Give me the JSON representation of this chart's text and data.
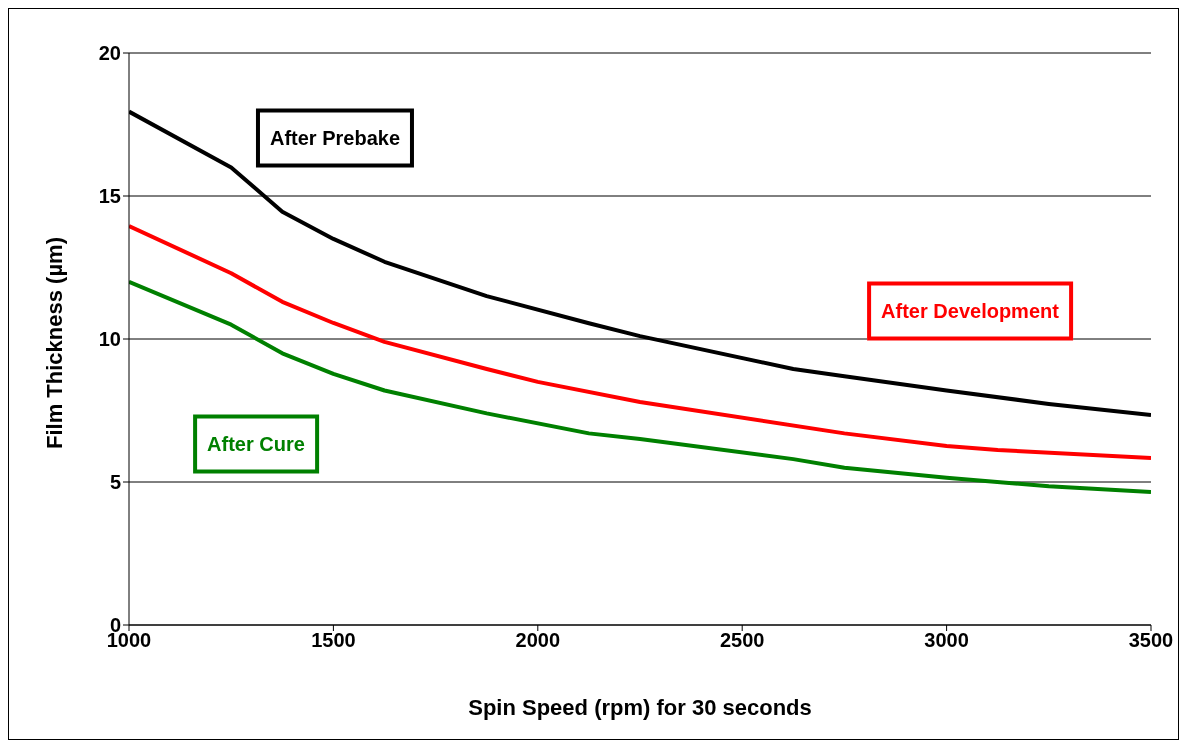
{
  "chart_data": {
    "type": "line",
    "xlabel": "Spin Speed (rpm) for 30 seconds",
    "ylabel": "Film Thickness (µm)",
    "xlim": [
      1000,
      3500
    ],
    "xticks": [
      1000,
      1500,
      2000,
      2500,
      3000,
      3500
    ],
    "ylim": [
      0,
      20
    ],
    "yticks": [
      0,
      5,
      10,
      15,
      20
    ],
    "grid": "y",
    "legend": false,
    "marker": "none",
    "line_style": "solid",
    "series": [
      {
        "name": "After Prebake",
        "color": "#000000",
        "x": [
          1000,
          1250,
          1375,
          1500,
          1625,
          1875,
          2125,
          2250,
          2625,
          2750,
          3000,
          3250,
          3500
        ],
        "values": [
          17.95,
          16.0,
          14.45,
          13.5,
          12.7,
          11.5,
          10.55,
          10.1,
          8.95,
          8.7,
          8.2,
          7.73,
          7.34
        ]
      },
      {
        "name": "After Development",
        "color": "#ff0000",
        "x": [
          1000,
          1250,
          1375,
          1500,
          1625,
          1875,
          2000,
          2250,
          2750,
          3000,
          3125,
          3500
        ],
        "values": [
          13.95,
          12.3,
          11.3,
          10.56,
          9.9,
          8.95,
          8.5,
          7.8,
          6.7,
          6.26,
          6.12,
          5.84
        ]
      },
      {
        "name": "After Cure",
        "color": "#008000",
        "x": [
          1000,
          1250,
          1375,
          1500,
          1625,
          1875,
          2125,
          2250,
          2625,
          2750,
          3000,
          3250,
          3500
        ],
        "values": [
          12.0,
          10.5,
          9.5,
          8.78,
          8.2,
          7.4,
          6.7,
          6.5,
          5.8,
          5.5,
          5.15,
          4.85,
          4.65
        ]
      }
    ]
  }
}
